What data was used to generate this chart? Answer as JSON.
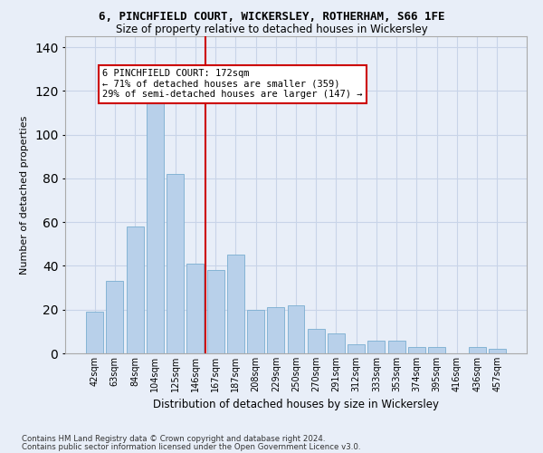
{
  "title": "6, PINCHFIELD COURT, WICKERSLEY, ROTHERHAM, S66 1FE",
  "subtitle": "Size of property relative to detached houses in Wickersley",
  "xlabel": "Distribution of detached houses by size in Wickersley",
  "ylabel": "Number of detached properties",
  "categories": [
    "42sqm",
    "63sqm",
    "84sqm",
    "104sqm",
    "125sqm",
    "146sqm",
    "167sqm",
    "187sqm",
    "208sqm",
    "229sqm",
    "250sqm",
    "270sqm",
    "291sqm",
    "312sqm",
    "333sqm",
    "353sqm",
    "374sqm",
    "395sqm",
    "416sqm",
    "436sqm",
    "457sqm"
  ],
  "values": [
    19,
    33,
    58,
    118,
    82,
    41,
    38,
    45,
    20,
    21,
    22,
    11,
    9,
    4,
    6,
    6,
    3,
    3,
    0,
    3,
    2
  ],
  "bar_color": "#b8d0ea",
  "bar_edgecolor": "#7aaed0",
  "grid_color": "#c8d4e8",
  "background_color": "#e8eef8",
  "vline_x": 5.5,
  "vline_color": "#cc0000",
  "annotation_text": "6 PINCHFIELD COURT: 172sqm\n← 71% of detached houses are smaller (359)\n29% of semi-detached houses are larger (147) →",
  "ylim": [
    0,
    145
  ],
  "yticks": [
    0,
    20,
    40,
    60,
    80,
    100,
    120,
    140
  ],
  "footnote1": "Contains HM Land Registry data © Crown copyright and database right 2024.",
  "footnote2": "Contains public sector information licensed under the Open Government Licence v3.0."
}
